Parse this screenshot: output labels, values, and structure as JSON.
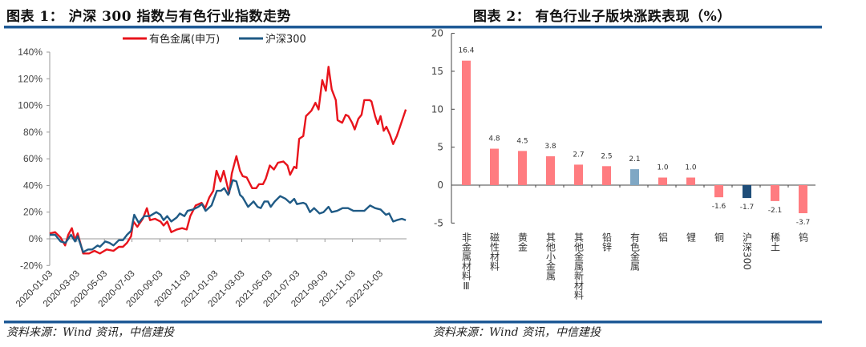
{
  "left": {
    "title": "图表 1： 沪深 300 指数与有色行业指数走势",
    "source": "资料来源：Wind 资讯，中信建投"
  },
  "right": {
    "title": "图表 2： 有色行业子版块涨跌表现（%）",
    "source": "资料来源：Wind 资讯，中信建投"
  },
  "chart_data": [
    {
      "type": "line",
      "title": "",
      "xlabel": "",
      "ylabel": "",
      "ylim": [
        -20,
        140
      ],
      "y_ticks": [
        "-20%",
        "0%",
        "20%",
        "40%",
        "60%",
        "80%",
        "100%",
        "120%",
        "140%"
      ],
      "x_ticks": [
        "2020-01-03",
        "2020-03-03",
        "2020-05-03",
        "2020-07-03",
        "2020-09-03",
        "2020-11-03",
        "2021-01-03",
        "2021-03-03",
        "2021-05-03",
        "2021-07-03",
        "2021-09-03",
        "2021-11-03",
        "2022-01-03"
      ],
      "legend_position": "top",
      "grid": false,
      "series": [
        {
          "name": "有色金属(申万)",
          "color": "#e8141c",
          "points": [
            [
              "2020-01-03",
              4
            ],
            [
              "2020-01-15",
              5
            ],
            [
              "2020-01-27",
              1
            ],
            [
              "2020-02-06",
              -5
            ],
            [
              "2020-02-13",
              3
            ],
            [
              "2020-02-21",
              8
            ],
            [
              "2020-02-28",
              -1
            ],
            [
              "2020-03-05",
              4
            ],
            [
              "2020-03-17",
              -11
            ],
            [
              "2020-03-30",
              -11
            ],
            [
              "2020-04-11",
              -9
            ],
            [
              "2020-04-23",
              -11
            ],
            [
              "2020-05-08",
              -8
            ],
            [
              "2020-05-23",
              -9
            ],
            [
              "2020-06-04",
              -6
            ],
            [
              "2020-06-13",
              -6
            ],
            [
              "2020-06-22",
              -3
            ],
            [
              "2020-07-01",
              2
            ],
            [
              "2020-07-06",
              13
            ],
            [
              "2020-07-15",
              9
            ],
            [
              "2020-07-27",
              15
            ],
            [
              "2020-08-05",
              23
            ],
            [
              "2020-08-12",
              14
            ],
            [
              "2020-08-23",
              15
            ],
            [
              "2020-09-04",
              13
            ],
            [
              "2020-09-11",
              10
            ],
            [
              "2020-09-19",
              13
            ],
            [
              "2020-09-28",
              5
            ],
            [
              "2020-10-10",
              7
            ],
            [
              "2020-10-22",
              8
            ],
            [
              "2020-11-01",
              7
            ],
            [
              "2020-11-09",
              17
            ],
            [
              "2020-11-21",
              25
            ],
            [
              "2020-12-04",
              27
            ],
            [
              "2020-12-12",
              23
            ],
            [
              "2020-12-21",
              31
            ],
            [
              "2020-12-30",
              36
            ],
            [
              "2021-01-06",
              51
            ],
            [
              "2021-01-15",
              43
            ],
            [
              "2021-01-22",
              51
            ],
            [
              "2021-02-03",
              34
            ],
            [
              "2021-02-09",
              49
            ],
            [
              "2021-02-19",
              62
            ],
            [
              "2021-02-27",
              51
            ],
            [
              "2021-03-05",
              47
            ],
            [
              "2021-03-14",
              46
            ],
            [
              "2021-03-26",
              38
            ],
            [
              "2021-04-04",
              38
            ],
            [
              "2021-04-10",
              41
            ],
            [
              "2021-04-19",
              41
            ],
            [
              "2021-04-25",
              45
            ],
            [
              "2021-05-04",
              55
            ],
            [
              "2021-05-13",
              52
            ],
            [
              "2021-05-22",
              57
            ],
            [
              "2021-06-03",
              58
            ],
            [
              "2021-06-12",
              55
            ],
            [
              "2021-06-18",
              48
            ],
            [
              "2021-06-27",
              54
            ],
            [
              "2021-07-02",
              53
            ],
            [
              "2021-07-08",
              75
            ],
            [
              "2021-07-17",
              77
            ],
            [
              "2021-07-23",
              92
            ],
            [
              "2021-08-04",
              96
            ],
            [
              "2021-08-13",
              102
            ],
            [
              "2021-08-20",
              97
            ],
            [
              "2021-08-28",
              119
            ],
            [
              "2021-09-05",
              111
            ],
            [
              "2021-09-11",
              129
            ],
            [
              "2021-09-18",
              112
            ],
            [
              "2021-09-27",
              104
            ],
            [
              "2021-10-01",
              89
            ],
            [
              "2021-10-11",
              87
            ],
            [
              "2021-10-19",
              93
            ],
            [
              "2021-10-25",
              92
            ],
            [
              "2021-11-02",
              87
            ],
            [
              "2021-11-08",
              82
            ],
            [
              "2021-11-16",
              90
            ],
            [
              "2021-11-23",
              93
            ],
            [
              "2021-11-29",
              104
            ],
            [
              "2021-12-11",
              104
            ],
            [
              "2021-12-15",
              103
            ],
            [
              "2021-12-23",
              92
            ],
            [
              "2021-12-29",
              86
            ],
            [
              "2022-01-04",
              92
            ],
            [
              "2022-01-11",
              81
            ],
            [
              "2022-01-17",
              84
            ],
            [
              "2022-01-25",
              78
            ],
            [
              "2022-02-01",
              71
            ],
            [
              "2022-02-09",
              77
            ],
            [
              "2022-02-17",
              85
            ],
            [
              "2022-03-01",
              97
            ]
          ]
        },
        {
          "name": "沪深300",
          "color": "#1f5a85",
          "points": [
            [
              "2020-01-03",
              3
            ],
            [
              "2020-01-15",
              3
            ],
            [
              "2020-01-27",
              -2
            ],
            [
              "2020-02-07",
              -3
            ],
            [
              "2020-02-19",
              3
            ],
            [
              "2020-02-28",
              -2
            ],
            [
              "2020-03-05",
              2
            ],
            [
              "2020-03-17",
              -10
            ],
            [
              "2020-03-28",
              -8
            ],
            [
              "2020-04-06",
              -8
            ],
            [
              "2020-04-18",
              -5
            ],
            [
              "2020-04-23",
              -6
            ],
            [
              "2020-05-05",
              -2
            ],
            [
              "2020-05-14",
              -3
            ],
            [
              "2020-05-23",
              -5
            ],
            [
              "2020-06-04",
              -1
            ],
            [
              "2020-06-13",
              -1
            ],
            [
              "2020-06-22",
              3
            ],
            [
              "2020-07-01",
              6
            ],
            [
              "2020-07-08",
              18
            ],
            [
              "2020-07-18",
              12
            ],
            [
              "2020-07-30",
              17
            ],
            [
              "2020-08-11",
              17
            ],
            [
              "2020-08-26",
              20
            ],
            [
              "2020-09-04",
              18
            ],
            [
              "2020-09-11",
              14
            ],
            [
              "2020-09-19",
              17
            ],
            [
              "2020-09-28",
              13
            ],
            [
              "2020-10-10",
              16
            ],
            [
              "2020-10-17",
              19
            ],
            [
              "2020-10-27",
              17
            ],
            [
              "2020-11-03",
              21
            ],
            [
              "2020-11-15",
              22
            ],
            [
              "2020-11-27",
              24
            ],
            [
              "2020-12-05",
              26
            ],
            [
              "2020-12-13",
              21
            ],
            [
              "2020-12-26",
              25
            ],
            [
              "2021-01-07",
              36
            ],
            [
              "2021-01-16",
              36
            ],
            [
              "2021-01-23",
              38
            ],
            [
              "2021-02-01",
              33
            ],
            [
              "2021-02-11",
              44
            ],
            [
              "2021-02-19",
              43
            ],
            [
              "2021-02-27",
              33
            ],
            [
              "2021-03-05",
              31
            ],
            [
              "2021-03-17",
              24
            ],
            [
              "2021-03-29",
              28
            ],
            [
              "2021-04-07",
              24
            ],
            [
              "2021-04-14",
              23
            ],
            [
              "2021-04-22",
              28
            ],
            [
              "2021-04-30",
              28
            ],
            [
              "2021-05-06",
              24
            ],
            [
              "2021-05-15",
              28
            ],
            [
              "2021-05-27",
              32
            ],
            [
              "2021-06-08",
              30
            ],
            [
              "2021-06-18",
              27
            ],
            [
              "2021-06-27",
              30
            ],
            [
              "2021-07-03",
              26
            ],
            [
              "2021-07-17",
              27
            ],
            [
              "2021-07-23",
              26
            ],
            [
              "2021-08-01",
              20
            ],
            [
              "2021-08-10",
              23
            ],
            [
              "2021-08-22",
              19
            ],
            [
              "2021-08-31",
              20
            ],
            [
              "2021-09-11",
              24
            ],
            [
              "2021-09-18",
              20
            ],
            [
              "2021-09-30",
              21
            ],
            [
              "2021-10-12",
              23
            ],
            [
              "2021-10-24",
              23
            ],
            [
              "2021-11-05",
              21
            ],
            [
              "2021-11-17",
              21
            ],
            [
              "2021-11-29",
              21
            ],
            [
              "2021-12-12",
              25
            ],
            [
              "2021-12-23",
              23
            ],
            [
              "2022-01-04",
              22
            ],
            [
              "2022-01-16",
              18
            ],
            [
              "2022-01-23",
              19
            ],
            [
              "2022-02-01",
              13
            ],
            [
              "2022-02-09",
              14
            ],
            [
              "2022-02-20",
              15
            ],
            [
              "2022-03-01",
              14
            ]
          ]
        }
      ]
    },
    {
      "type": "bar",
      "title": "",
      "xlabel": "",
      "ylabel": "",
      "ylim": [
        -5,
        20
      ],
      "y_ticks": [
        "-5",
        "0",
        "5",
        "10",
        "15",
        "20"
      ],
      "grid": false,
      "categories": [
        "非金属材料Ⅲ",
        "磁性材料",
        "黄金",
        "其他小金属",
        "其他金属新材料",
        "铅锌",
        "有色金属",
        "铝",
        "锂",
        "铜",
        "沪深300",
        "稀土",
        "钨"
      ],
      "values": [
        16.4,
        4.8,
        4.5,
        3.8,
        2.7,
        2.5,
        2.1,
        1.0,
        1.0,
        -1.6,
        -1.7,
        -2.1,
        -3.7
      ],
      "data_labels": [
        "16.4",
        "4.8",
        "4.5",
        "3.8",
        "2.7",
        "2.5",
        "2.1",
        "1.0",
        "1.0",
        "-1.6",
        "-1.7",
        "-2.1",
        "-3.7"
      ],
      "colors": [
        "#ff7c80",
        "#ff7c80",
        "#ff7c80",
        "#ff7c80",
        "#ff7c80",
        "#ff7c80",
        "#7fa7c4",
        "#ff7c80",
        "#ff7c80",
        "#ff7c80",
        "#1f4e79",
        "#ff7c80",
        "#ff7c80"
      ]
    }
  ]
}
